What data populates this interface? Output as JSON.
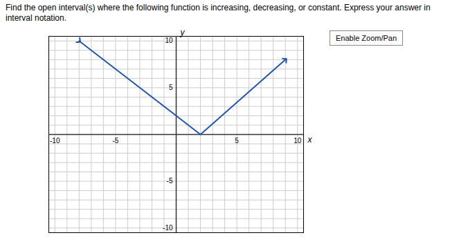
{
  "chart_data": {
    "type": "line",
    "title": "Find the open interval(s) where the following function is increasing, decreasing, or constant. Express your answer in interval notation.",
    "xlabel": "x",
    "ylabel": "y",
    "x": [
      -8,
      2,
      9
    ],
    "values": [
      10,
      0,
      8
    ],
    "color": "#2255aa",
    "marker": "arrow",
    "xlim": [
      -10.5,
      10.5
    ],
    "ylim": [
      -10.5,
      10.5
    ],
    "xticks": [
      -10,
      -5,
      5,
      10
    ],
    "yticks": [
      -10,
      -5,
      5,
      10
    ],
    "grid": true,
    "annotations": [
      "Enable Zoom/Pan"
    ]
  }
}
